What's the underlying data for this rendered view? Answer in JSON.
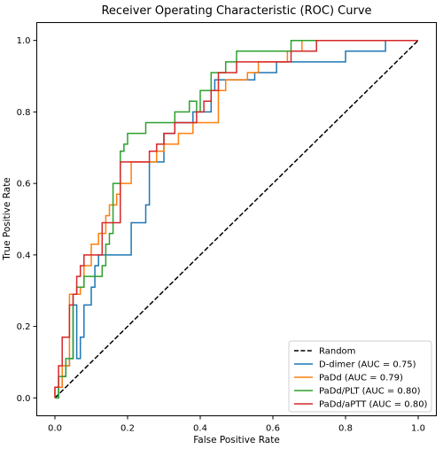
{
  "chart_data": {
    "type": "line",
    "title": "Receiver Operating Characteristic (ROC) Curve",
    "xlabel": "False Positive Rate",
    "ylabel": "True Positive Rate",
    "xlim": [
      -0.05,
      1.05
    ],
    "ylim": [
      -0.05,
      1.05
    ],
    "xticks": [
      0.0,
      0.2,
      0.4,
      0.6,
      0.8,
      1.0
    ],
    "yticks": [
      0.0,
      0.2,
      0.4,
      0.6,
      0.8,
      1.0
    ],
    "tick_labels": [
      "0.0",
      "0.2",
      "0.4",
      "0.6",
      "0.8",
      "1.0"
    ],
    "grid": false,
    "legend_position": "lower-right",
    "reference_line": {
      "name": "Random",
      "x": [
        0,
        1
      ],
      "y": [
        0,
        1
      ],
      "color": "#000000",
      "dashed": true
    },
    "series": [
      {
        "name": "D-dimer (AUC = 0.75)",
        "color": "#1f77b4",
        "x": [
          0,
          0.01,
          0.01,
          0.02,
          0.02,
          0.03,
          0.03,
          0.04,
          0.04,
          0.05,
          0.05,
          0.06,
          0.06,
          0.07,
          0.07,
          0.08,
          0.08,
          0.1,
          0.1,
          0.11,
          0.11,
          0.12,
          0.12,
          0.21,
          0.21,
          0.25,
          0.25,
          0.26,
          0.26,
          0.3,
          0.3,
          0.33,
          0.33,
          0.38,
          0.38,
          0.43,
          0.43,
          0.44,
          0.44,
          0.55,
          0.55,
          0.61,
          0.61,
          0.8,
          0.8,
          0.91,
          0.91,
          1.0
        ],
        "y": [
          0,
          0,
          0.03,
          0.03,
          0.06,
          0.06,
          0.09,
          0.09,
          0.11,
          0.11,
          0.26,
          0.26,
          0.11,
          0.11,
          0.17,
          0.17,
          0.26,
          0.26,
          0.31,
          0.31,
          0.37,
          0.37,
          0.4,
          0.4,
          0.49,
          0.49,
          0.54,
          0.54,
          0.66,
          0.66,
          0.74,
          0.74,
          0.77,
          0.77,
          0.8,
          0.8,
          0.86,
          0.86,
          0.89,
          0.89,
          0.91,
          0.91,
          0.94,
          0.94,
          0.97,
          0.97,
          1.0,
          1.0
        ]
      },
      {
        "name": "PaDd (AUC = 0.79)",
        "color": "#ff7f0e",
        "x": [
          0,
          0,
          0.02,
          0.02,
          0.04,
          0.04,
          0.07,
          0.07,
          0.08,
          0.08,
          0.1,
          0.1,
          0.12,
          0.12,
          0.14,
          0.14,
          0.15,
          0.15,
          0.17,
          0.17,
          0.18,
          0.18,
          0.21,
          0.21,
          0.28,
          0.28,
          0.3,
          0.3,
          0.34,
          0.34,
          0.38,
          0.38,
          0.45,
          0.45,
          0.47,
          0.47,
          0.53,
          0.53,
          0.56,
          0.56,
          0.64,
          0.64,
          0.67,
          0.67,
          0.68,
          0.68,
          1.0
        ],
        "y": [
          0,
          0.03,
          0.03,
          0.09,
          0.09,
          0.29,
          0.29,
          0.31,
          0.31,
          0.37,
          0.37,
          0.43,
          0.43,
          0.46,
          0.46,
          0.51,
          0.51,
          0.54,
          0.54,
          0.57,
          0.57,
          0.6,
          0.6,
          0.66,
          0.66,
          0.69,
          0.69,
          0.71,
          0.71,
          0.74,
          0.74,
          0.77,
          0.77,
          0.86,
          0.86,
          0.89,
          0.89,
          0.91,
          0.91,
          0.94,
          0.94,
          0.97,
          0.97,
          0.97,
          0.97,
          1.0,
          1.0
        ]
      },
      {
        "name": "PaDd/PLT (AUC = 0.80)",
        "color": "#2ca02c",
        "x": [
          0,
          0.01,
          0.01,
          0.03,
          0.03,
          0.05,
          0.05,
          0.06,
          0.06,
          0.08,
          0.08,
          0.13,
          0.13,
          0.14,
          0.14,
          0.15,
          0.15,
          0.16,
          0.16,
          0.18,
          0.18,
          0.19,
          0.19,
          0.2,
          0.2,
          0.21,
          0.21,
          0.25,
          0.25,
          0.33,
          0.33,
          0.37,
          0.37,
          0.39,
          0.39,
          0.4,
          0.4,
          0.43,
          0.43,
          0.47,
          0.47,
          0.5,
          0.5,
          0.6,
          0.6,
          0.65,
          0.65,
          0.68,
          0.68,
          1.0
        ],
        "y": [
          0,
          0,
          0.06,
          0.06,
          0.11,
          0.11,
          0.29,
          0.29,
          0.31,
          0.31,
          0.34,
          0.34,
          0.37,
          0.37,
          0.43,
          0.43,
          0.46,
          0.46,
          0.6,
          0.6,
          0.69,
          0.69,
          0.71,
          0.71,
          0.74,
          0.74,
          0.74,
          0.74,
          0.77,
          0.77,
          0.8,
          0.8,
          0.83,
          0.83,
          0.8,
          0.8,
          0.86,
          0.86,
          0.91,
          0.91,
          0.94,
          0.94,
          0.97,
          0.97,
          0.97,
          0.97,
          1.0,
          1.0,
          1.0,
          1.0
        ]
      },
      {
        "name": "PaDd/aPTT (AUC = 0.80)",
        "color": "#d62728",
        "x": [
          0,
          0,
          0.01,
          0.01,
          0.02,
          0.02,
          0.04,
          0.04,
          0.05,
          0.05,
          0.06,
          0.06,
          0.07,
          0.07,
          0.08,
          0.08,
          0.1,
          0.1,
          0.13,
          0.13,
          0.18,
          0.18,
          0.26,
          0.26,
          0.28,
          0.28,
          0.3,
          0.3,
          0.31,
          0.31,
          0.33,
          0.33,
          0.39,
          0.39,
          0.41,
          0.41,
          0.43,
          0.43,
          0.45,
          0.45,
          0.47,
          0.47,
          0.5,
          0.5,
          0.58,
          0.58,
          0.65,
          0.65,
          0.72,
          0.72,
          1.0
        ],
        "y": [
          0,
          0.03,
          0.03,
          0.09,
          0.09,
          0.17,
          0.17,
          0.26,
          0.26,
          0.29,
          0.29,
          0.34,
          0.34,
          0.37,
          0.37,
          0.4,
          0.4,
          0.4,
          0.4,
          0.49,
          0.49,
          0.66,
          0.66,
          0.69,
          0.69,
          0.71,
          0.71,
          0.74,
          0.74,
          0.74,
          0.74,
          0.77,
          0.77,
          0.8,
          0.8,
          0.83,
          0.83,
          0.86,
          0.86,
          0.91,
          0.91,
          0.91,
          0.91,
          0.94,
          0.94,
          0.94,
          0.94,
          0.97,
          0.97,
          1.0,
          1.0
        ]
      }
    ]
  }
}
